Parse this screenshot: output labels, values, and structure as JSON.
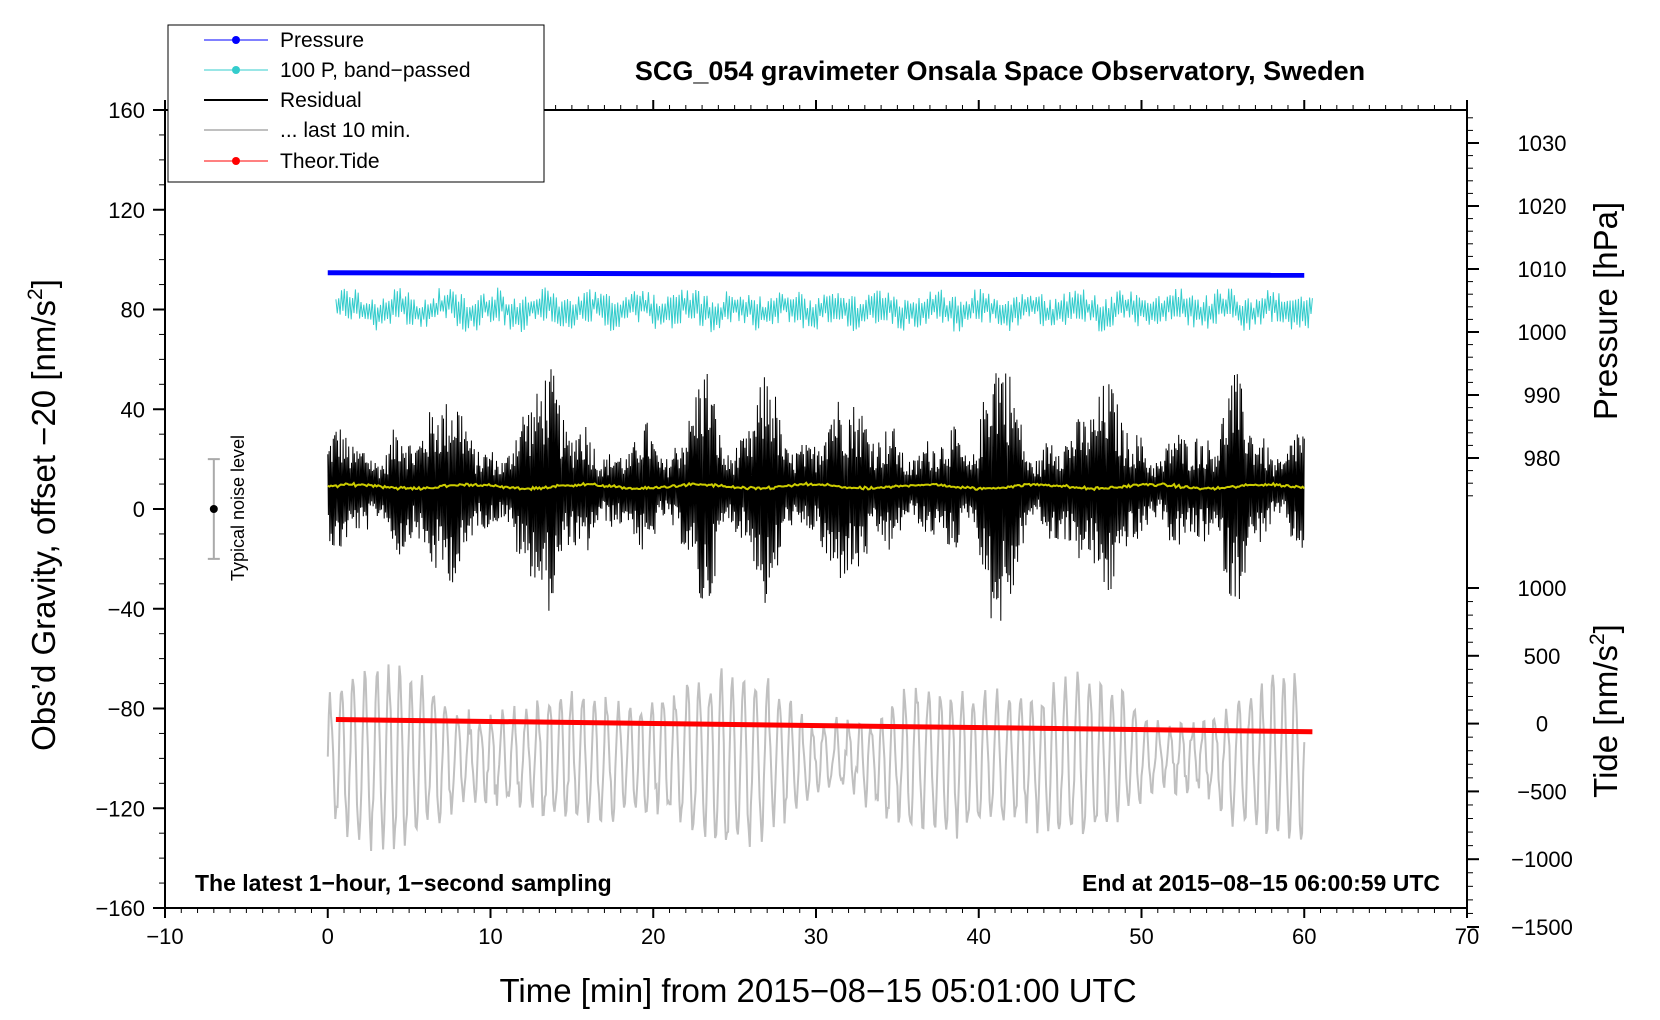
{
  "chart_data": {
    "type": "line",
    "title": "SCG_054 gravimeter Onsala Space Observatory, Sweden",
    "xlabel": "Time [min] from 2015−08−15 05:01:00 UTC",
    "ylabel": "Obs’d Gravity, offset −20 [nm/s²]",
    "ylabel_main": "Obs’d Gravity, offset −20 [nm/s",
    "ylabel_sup": "2",
    "ylabel_close": "]",
    "y2label": "Pressure [hPa]",
    "y3label": "Tide [nm/s²]",
    "y3label_main": "Tide [nm/s",
    "y3label_sup": "2",
    "y3label_close": "]",
    "xlim": [
      -10,
      70
    ],
    "ylim": [
      -160,
      160
    ],
    "x_ticks": [
      -10,
      0,
      10,
      20,
      30,
      40,
      50,
      60,
      70
    ],
    "x_tick_labels": [
      "−10",
      "0",
      "10",
      "20",
      "30",
      "40",
      "50",
      "60",
      "70"
    ],
    "y_ticks": [
      160,
      120,
      80,
      40,
      0,
      -40,
      -80,
      -120,
      -160
    ],
    "y_tick_labels": [
      "160",
      "120",
      "80",
      "40",
      "0",
      "−40",
      "−80",
      "−120",
      "−160"
    ],
    "pressure_axis": {
      "ticks": [
        1030,
        1020,
        1010,
        1000,
        990,
        980
      ],
      "tick_labels": [
        "1030",
        "1020",
        "1010",
        "1000",
        "990",
        "980"
      ],
      "range": [
        973,
        1035
      ]
    },
    "tide_axis": {
      "ticks": [
        1000,
        500,
        0,
        -500,
        -1000,
        -1500
      ],
      "tick_labels": [
        "1000",
        "500",
        "0",
        "−500",
        "−1000",
        "−1500"
      ],
      "range": [
        -1500,
        1000
      ]
    },
    "annotations": {
      "bottom_left": "The latest 1−hour, 1−second sampling",
      "bottom_right": "End at 2015−08−15 06:00:59 UTC",
      "noise_label": "Typical noise level"
    },
    "noise_bar": {
      "x": -7,
      "center": 0,
      "low": -20,
      "high": 20
    },
    "legend": {
      "position": "top-left",
      "entries": [
        "Pressure",
        "100 P, band−passed",
        "Residual",
        "... last 10 min.",
        "Theor.Tide"
      ]
    },
    "series": [
      {
        "name": "Pressure",
        "axis": "pressure",
        "x_range": [
          0,
          60
        ],
        "start": 1009.4,
        "end": 1009.0
      },
      {
        "name": "100 P, band−passed",
        "axis": "gravity",
        "x_range": [
          0,
          60
        ],
        "mean": 80,
        "amplitude": 6
      },
      {
        "name": "Residual",
        "axis": "gravity",
        "x_range": [
          0,
          60
        ],
        "mean": 8,
        "envelope_peaks": [
          [
            7,
            40
          ],
          [
            13.5,
            50
          ],
          [
            23,
            40
          ],
          [
            27,
            38
          ],
          [
            32,
            42
          ],
          [
            41.2,
            53
          ],
          [
            47.5,
            44
          ],
          [
            55.5,
            40
          ]
        ]
      },
      {
        "name": "Residual smoothed",
        "axis": "gravity",
        "x_range": [
          0,
          60
        ],
        "mean": 9
      },
      {
        "name": "... last 10 min.",
        "axis": "gravity",
        "x_range": [
          0,
          60
        ],
        "range": [
          -140,
          -60
        ]
      },
      {
        "name": "Theor.Tide",
        "axis": "tide",
        "x_range": [
          0,
          60.5
        ],
        "start": 30,
        "end": -60
      }
    ],
    "colors": {
      "pressure": "#0000ff",
      "bandpassed": "#33cccc",
      "residual": "#000000",
      "smoothed": "#cccc00",
      "last10": "#c0c0c0",
      "tide": "#ff0000",
      "frame": "#000000"
    }
  }
}
